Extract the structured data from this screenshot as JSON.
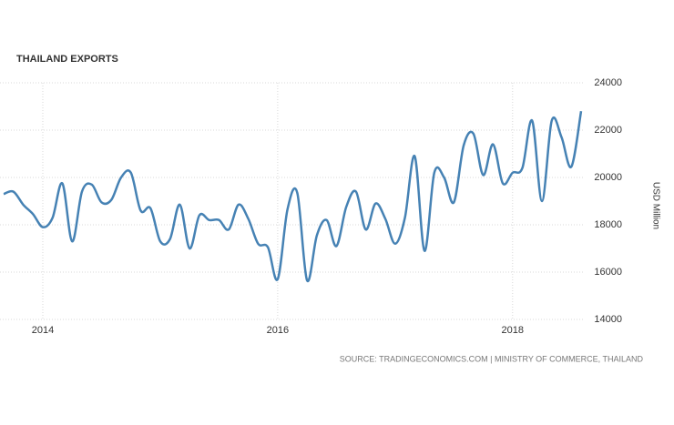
{
  "chart_data": {
    "type": "line",
    "title": "THAILAND EXPORTS",
    "y_label": "USD Million",
    "source": "SOURCE: TRADINGECONOMICS.COM | MINISTRY OF COMMERCE, THAILAND",
    "x": [
      "2013-09",
      "2013-10",
      "2013-11",
      "2013-12",
      "2014-01",
      "2014-02",
      "2014-03",
      "2014-04",
      "2014-05",
      "2014-06",
      "2014-07",
      "2014-08",
      "2014-09",
      "2014-10",
      "2014-11",
      "2014-12",
      "2015-01",
      "2015-02",
      "2015-03",
      "2015-04",
      "2015-05",
      "2015-06",
      "2015-07",
      "2015-08",
      "2015-09",
      "2015-10",
      "2015-11",
      "2015-12",
      "2016-01",
      "2016-02",
      "2016-03",
      "2016-04",
      "2016-05",
      "2016-06",
      "2016-07",
      "2016-08",
      "2016-09",
      "2016-10",
      "2016-11",
      "2016-12",
      "2017-01",
      "2017-02",
      "2017-03",
      "2017-04",
      "2017-05",
      "2017-06",
      "2017-07",
      "2017-08",
      "2017-09",
      "2017-10",
      "2017-11",
      "2017-12",
      "2018-01",
      "2018-02",
      "2018-03",
      "2018-04",
      "2018-05",
      "2018-06",
      "2018-07",
      "2018-08"
    ],
    "series": [
      {
        "name": "Exports",
        "color": "#4682b4",
        "values": [
          19300,
          19400,
          18850,
          18450,
          17900,
          18300,
          19750,
          17300,
          19400,
          19700,
          18950,
          19050,
          20000,
          20200,
          18600,
          18700,
          17300,
          17400,
          18850,
          17000,
          18400,
          18200,
          18200,
          17800,
          18850,
          18250,
          17200,
          17050,
          15700,
          18650,
          19350,
          15650,
          17550,
          18200,
          17100,
          18750,
          19400,
          17800,
          18900,
          18250,
          17200,
          18300,
          20900,
          16900,
          20200,
          20000,
          18950,
          21350,
          21850,
          20100,
          21400,
          19750,
          20200,
          20400,
          22400,
          19000,
          22400,
          21700,
          20450,
          22800
        ]
      }
    ],
    "xlim": [
      "2013-09",
      "2018-08"
    ],
    "xticks": [
      2014,
      2016,
      2018
    ],
    "ylim": [
      14000,
      24000
    ],
    "yticks": [
      14000,
      16000,
      18000,
      20000,
      22000,
      24000
    ],
    "grid": true
  }
}
